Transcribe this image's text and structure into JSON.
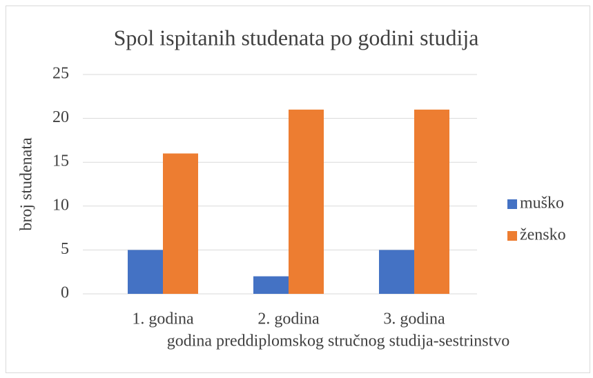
{
  "chart_data": {
    "type": "bar",
    "title": "Spol ispitanih studenata po godini studija",
    "x_label": "godina preddiplomskog stručnog studija-sestrinstvo",
    "y_label": "broj studenata",
    "categories": [
      "1. godina",
      "2. godina",
      "3. godina"
    ],
    "series": [
      {
        "name": "muško",
        "color": "#4472c4",
        "values": [
          5,
          2,
          5
        ]
      },
      {
        "name": "žensko",
        "color": "#ed7d31",
        "values": [
          16,
          21,
          21
        ]
      }
    ],
    "ylim": [
      0,
      25
    ],
    "yticks": [
      0,
      5,
      10,
      15,
      20,
      25
    ],
    "grid": true,
    "legend": "right"
  }
}
